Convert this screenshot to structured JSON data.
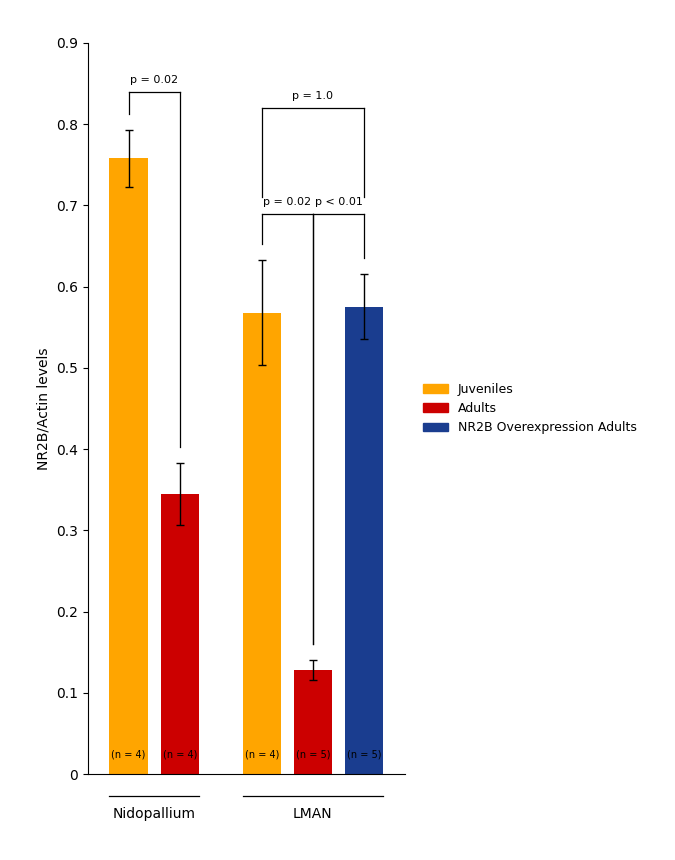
{
  "chart_data": {
    "type": "bar",
    "ylabel": "NR2B/Actin levels",
    "ylim": [
      0,
      0.9
    ],
    "yticks": [
      0,
      0.1,
      0.2,
      0.3,
      0.4,
      0.5,
      0.6,
      0.7,
      0.8,
      0.9
    ],
    "tick_labels": "y",
    "legend": "right",
    "series": [
      {
        "name": "Juveniles",
        "color": "#FFA500"
      },
      {
        "name": "Adults",
        "color": "#CC0000"
      },
      {
        "name": "NR2B Overexpression Adults",
        "color": "#1a3d8f"
      }
    ],
    "groups": [
      {
        "name": "Nidopallium",
        "bars": [
          {
            "series": "Juveniles",
            "value": 0.758,
            "error": 0.035,
            "n_label": "(n = 4)"
          },
          {
            "series": "Adults",
            "value": 0.345,
            "error": 0.038,
            "n_label": "(n = 4)"
          }
        ]
      },
      {
        "name": "LMAN",
        "bars": [
          {
            "series": "Juveniles",
            "value": 0.568,
            "error": 0.065,
            "n_label": "(n = 4)"
          },
          {
            "series": "Adults",
            "value": 0.128,
            "error": 0.012,
            "n_label": "(n = 5)"
          },
          {
            "series": "NR2B Overexpression Adults",
            "value": 0.575,
            "error": 0.04,
            "n_label": "(n = 5)"
          }
        ]
      }
    ],
    "annotations": [
      {
        "text": "p = 0.02",
        "from_bar": 0,
        "to_bar": 1,
        "y": 0.84
      },
      {
        "text": "p = 0.02",
        "from_bar": 2,
        "to_bar": 3,
        "y": 0.69
      },
      {
        "text": "p < 0.01",
        "from_bar": 3,
        "to_bar": 4,
        "y": 0.69
      },
      {
        "text": "p = 1.0",
        "from_bar": 2,
        "to_bar": 4,
        "y": 0.82
      }
    ]
  }
}
